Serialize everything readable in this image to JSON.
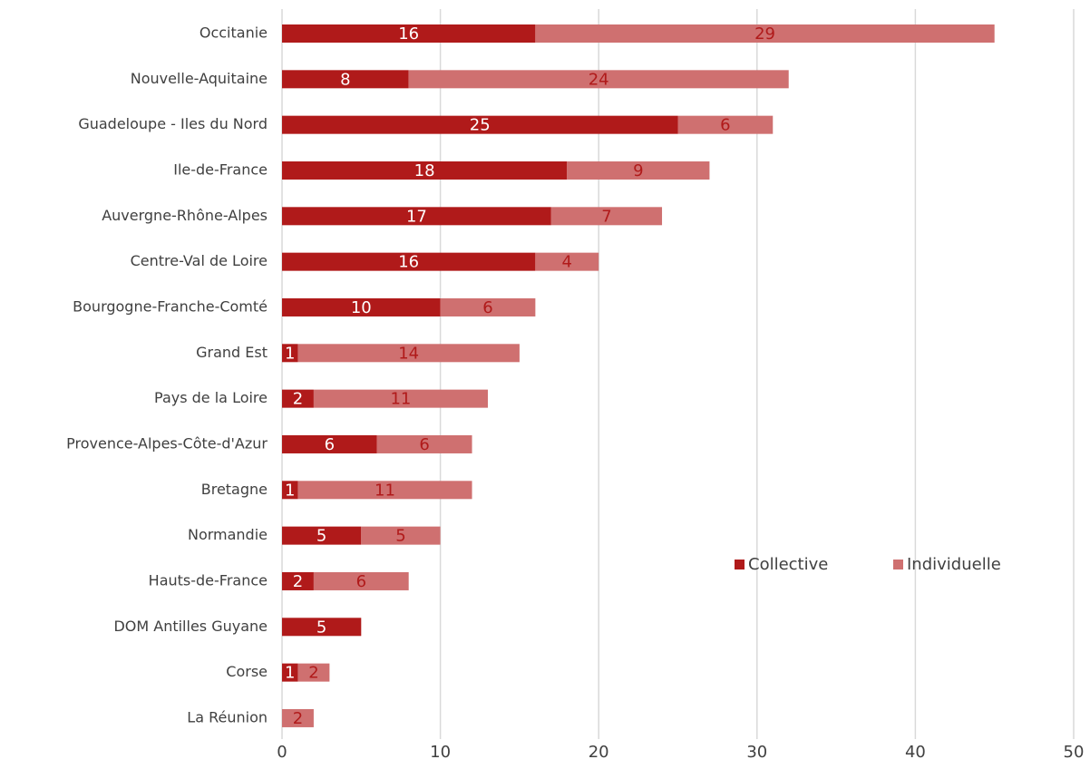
{
  "chart_data": {
    "type": "stacked_barh",
    "categories": [
      "Occitanie",
      "Nouvelle-Aquitaine",
      "Guadeloupe - Iles du Nord",
      "Ile-de-France",
      "Auvergne-Rhône-Alpes",
      "Centre-Val de Loire",
      "Bourgogne-Franche-Comté",
      "Grand Est",
      "Pays de la Loire",
      "Provence-Alpes-Côte-d'Azur",
      "Bretagne",
      "Normandie",
      "Hauts-de-France",
      "DOM Antilles Guyane",
      "Corse",
      "La Réunion"
    ],
    "series": [
      {
        "name": "Collective",
        "color": "#b01a1a",
        "label_color": "#ffffff",
        "values": [
          16,
          8,
          25,
          18,
          17,
          16,
          10,
          1,
          2,
          6,
          1,
          5,
          2,
          5,
          1,
          null
        ]
      },
      {
        "name": "Individuelle",
        "color": "#cf7070",
        "label_color": "#b01a1a",
        "values": [
          29,
          24,
          6,
          9,
          7,
          4,
          6,
          14,
          11,
          6,
          11,
          5,
          6,
          null,
          2,
          2
        ]
      }
    ],
    "xlim": [
      0,
      50
    ],
    "xticks": [
      0,
      10,
      20,
      30,
      40,
      50
    ],
    "grid": true,
    "legend": "right"
  }
}
